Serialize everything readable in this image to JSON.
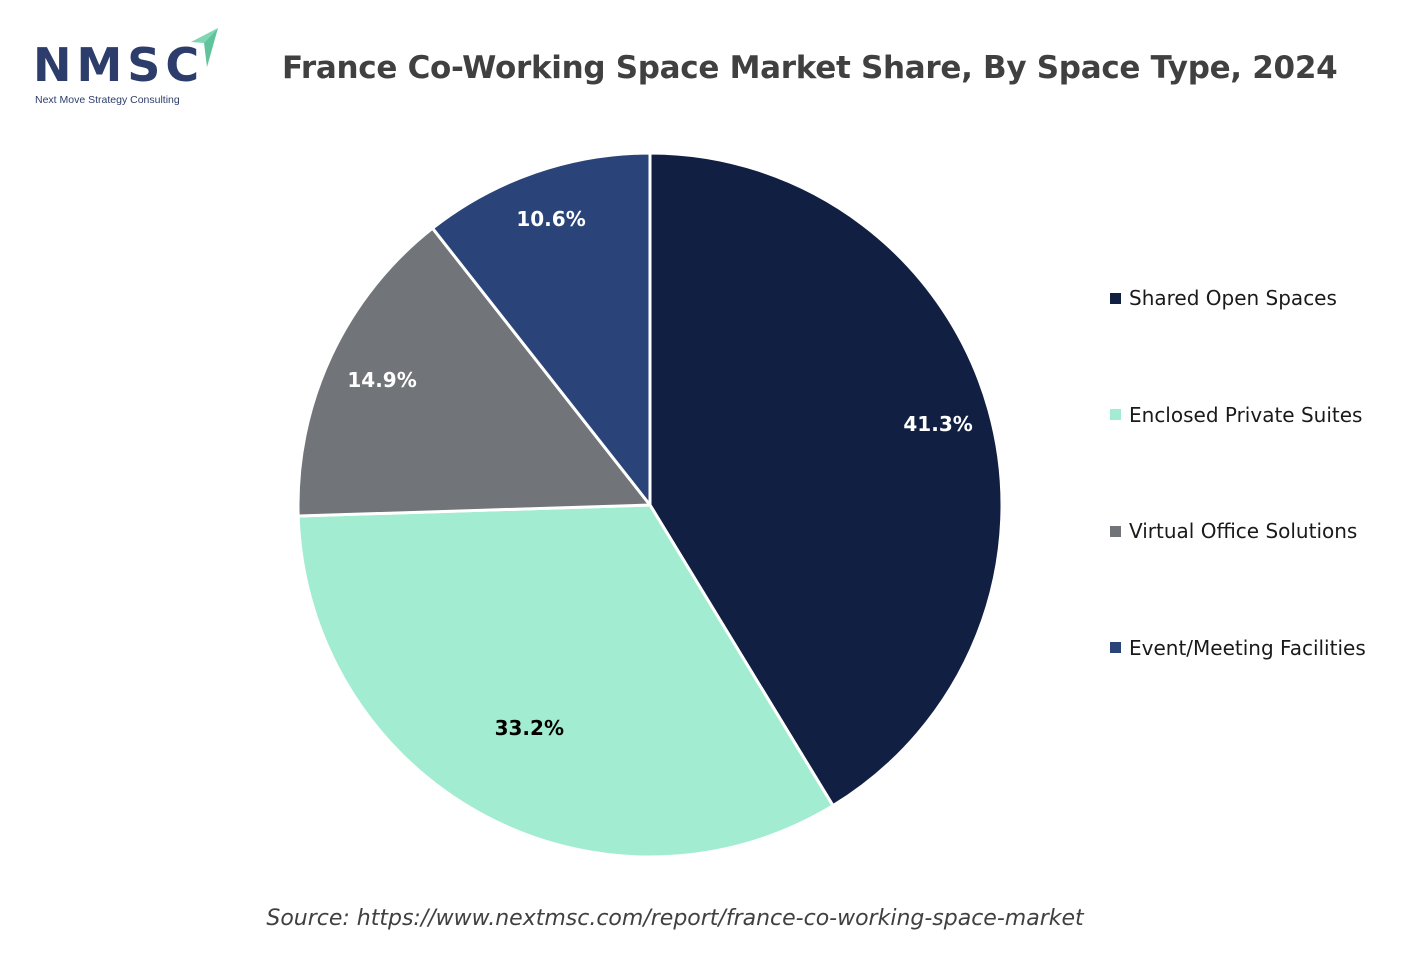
{
  "logo": {
    "name": "NMSC",
    "tagline": "Next Move Strategy Consulting"
  },
  "title": "France Co-Working Space Market Share, By Space Type, 2024",
  "source": "Source: https://www.nextmsc.com/report/france-co-working-space-market",
  "chart_data": {
    "type": "pie",
    "title": "France Co-Working Space Market Share, By Space Type, 2024",
    "legend_position": "right",
    "start_angle": "12 o'clock",
    "direction": "clockwise",
    "slices": [
      {
        "label": "Shared Open Spaces",
        "value": 41.3,
        "display": "41.3%",
        "color": "#111f42",
        "label_color": "#ffffff"
      },
      {
        "label": "Enclosed Private Suites",
        "value": 33.2,
        "display": "33.2%",
        "color": "#a2ecd2",
        "label_color": "#000000"
      },
      {
        "label": "Virtual Office Solutions",
        "value": 14.9,
        "display": "14.9%",
        "color": "#717479",
        "label_color": "#ffffff"
      },
      {
        "label": "Event/Meeting Facilities",
        "value": 10.6,
        "display": "10.6%",
        "color": "#2a4479",
        "label_color": "#ffffff"
      }
    ]
  }
}
